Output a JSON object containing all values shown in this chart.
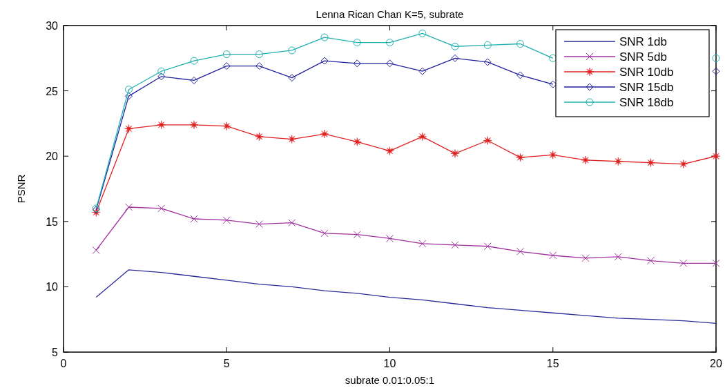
{
  "chart_data": {
    "type": "line",
    "title": "Lenna Rican Chan K=5, subrate",
    "xlabel": "subrate 0.01:0.05:1",
    "ylabel": "PSNR",
    "x": [
      1,
      2,
      3,
      4,
      5,
      6,
      7,
      8,
      9,
      10,
      11,
      12,
      13,
      14,
      15,
      16,
      17,
      18,
      19,
      20
    ],
    "xlim": [
      0,
      20
    ],
    "xticks": [
      0,
      5,
      10,
      15,
      20
    ],
    "ylim": [
      5,
      30
    ],
    "yticks": [
      5,
      10,
      15,
      20,
      25,
      30
    ],
    "legend": "top right",
    "grid": false,
    "line_style": "solid",
    "series": [
      {
        "name": "SNR 1db",
        "color": "#2b2b9a",
        "marker": "none",
        "values": [
          9.2,
          11.3,
          11.1,
          10.8,
          10.5,
          10.2,
          10.0,
          9.7,
          9.5,
          9.2,
          9.0,
          8.7,
          8.4,
          8.2,
          8.0,
          7.8,
          7.6,
          7.5,
          7.4,
          7.2
        ]
      },
      {
        "name": "SNR 5db",
        "color": "#a030a0",
        "marker": "cross",
        "values": [
          12.8,
          16.1,
          16.0,
          15.2,
          15.1,
          14.8,
          14.9,
          14.1,
          14.0,
          13.7,
          13.3,
          13.2,
          13.1,
          12.7,
          12.4,
          12.2,
          12.3,
          12.0,
          11.8,
          11.8
        ]
      },
      {
        "name": "SNR 10db",
        "color": "#e02020",
        "marker": "star",
        "values": [
          15.7,
          22.1,
          22.4,
          22.4,
          22.3,
          21.5,
          21.3,
          21.7,
          21.1,
          20.4,
          21.5,
          20.2,
          21.2,
          19.9,
          20.1,
          19.7,
          19.6,
          19.5,
          19.4,
          20.0
        ]
      },
      {
        "name": "SNR 15db",
        "color": "#2020a0",
        "marker": "diamond",
        "values": [
          15.9,
          24.6,
          26.1,
          25.8,
          26.9,
          26.9,
          26.0,
          27.3,
          27.1,
          27.1,
          26.5,
          27.5,
          27.2,
          26.2,
          25.5,
          null,
          null,
          null,
          null,
          26.5
        ]
      },
      {
        "name": "SNR 18db",
        "color": "#20b0b0",
        "marker": "circle",
        "values": [
          16.0,
          25.1,
          26.5,
          27.3,
          27.8,
          27.8,
          28.1,
          29.1,
          28.7,
          28.7,
          29.4,
          28.4,
          28.5,
          28.6,
          27.5,
          null,
          null,
          null,
          null,
          27.5
        ]
      }
    ]
  }
}
